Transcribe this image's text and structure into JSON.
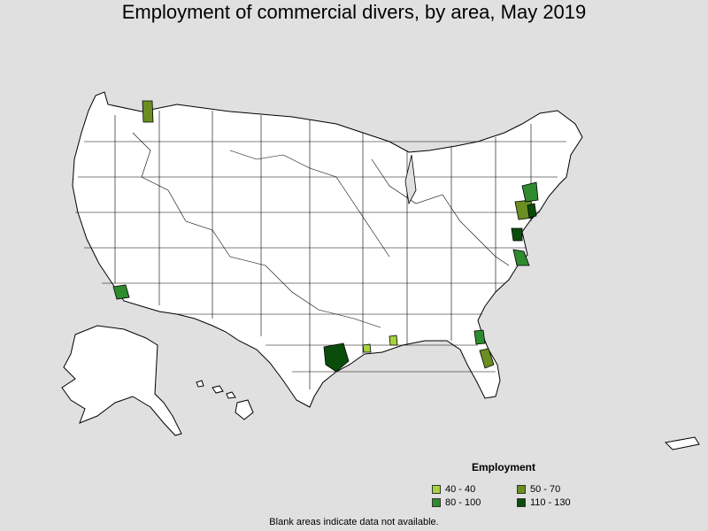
{
  "title": "Employment of commercial divers, by area, May 2019",
  "legend": {
    "title": "Employment",
    "items": [
      {
        "label": "40 - 40",
        "color": "#a6d23c"
      },
      {
        "label": "50 - 70",
        "color": "#6b8e23"
      },
      {
        "label": "80 - 100",
        "color": "#2e8b2e"
      },
      {
        "label": "110 - 130",
        "color": "#0a4d0a"
      }
    ]
  },
  "footnote": "Blank areas indicate data not available.",
  "colors": {
    "background": "#e0e0e0",
    "land": "#ffffff",
    "border": "#000000"
  }
}
